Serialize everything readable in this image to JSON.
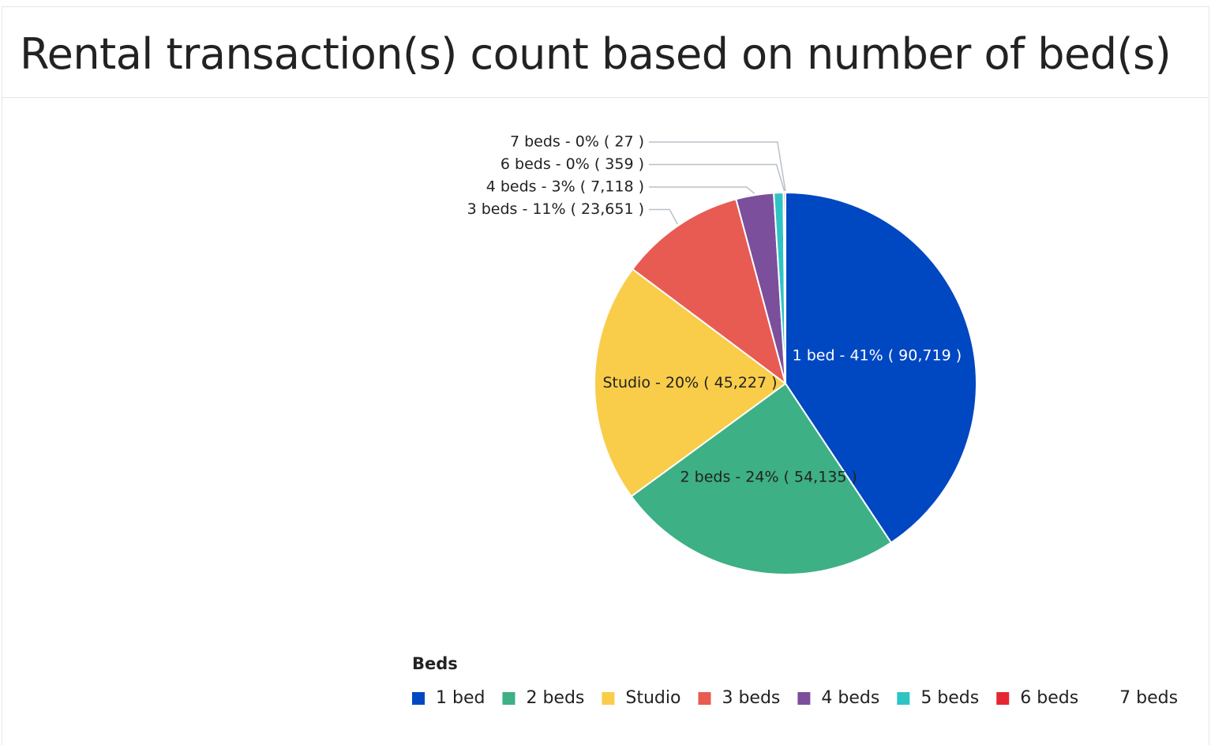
{
  "chart_data": {
    "type": "pie",
    "title": "Rental transaction(s) count based on number of bed(s)",
    "legend_title": "Beds",
    "categories": [
      "1 bed",
      "2 beds",
      "Studio",
      "3 beds",
      "4 beds",
      "5 beds",
      "6 beds",
      "7 beds"
    ],
    "values": [
      90719,
      54135,
      45227,
      23651,
      7118,
      1800,
      359,
      27
    ],
    "value_labels": [
      "1 bed - 41% ( 90,719 )",
      "2 beds - 24% ( 54,135 )",
      "Studio - 20% ( 45,227 )",
      "3 beds - 11% ( 23,651 )",
      "4 beds - 3% ( 7,118 )",
      null,
      "6 beds - 0% ( 359 )",
      "7 beds - 0% ( 27 )"
    ],
    "colors": [
      "#0047c2",
      "#3db085",
      "#f9cd4a",
      "#e85b52",
      "#7b4f9c",
      "#2ec4c4",
      "#e52631",
      "#ffffff"
    ],
    "legend": "bottom"
  }
}
